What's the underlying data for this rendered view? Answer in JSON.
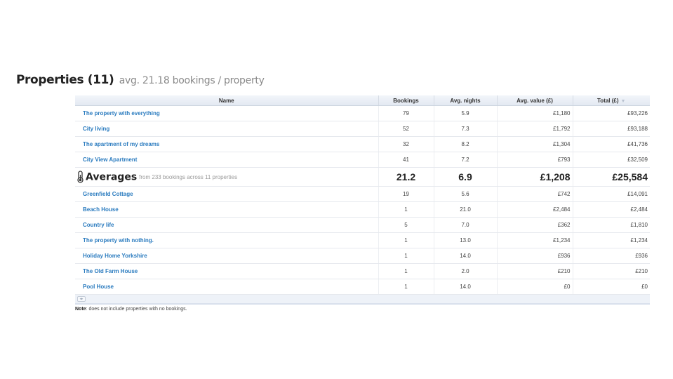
{
  "heading": {
    "title": "Properties (11)",
    "subtitle": "avg. 21.18 bookings / property"
  },
  "table": {
    "columns": {
      "name": "Name",
      "bookings": "Bookings",
      "nights": "Avg. nights",
      "value": "Avg. value (£)",
      "total": "Total (£)",
      "sort_icon": "sort-desc-icon"
    },
    "rows_top": [
      {
        "name": "The property with everything",
        "bookings": "79",
        "nights": "5.9",
        "value": "£1,180",
        "total": "£93,226"
      },
      {
        "name": "City living",
        "bookings": "52",
        "nights": "7.3",
        "value": "£1,792",
        "total": "£93,188"
      },
      {
        "name": "The apartment of my dreams",
        "bookings": "32",
        "nights": "8.2",
        "value": "£1,304",
        "total": "£41,736"
      },
      {
        "name": "City View Apartment",
        "bookings": "41",
        "nights": "7.2",
        "value": "£793",
        "total": "£32,509"
      }
    ],
    "averages": {
      "icon": "thermometer-icon",
      "label": "Averages",
      "note": "from 233 bookings across 11 properties",
      "bookings": "21.2",
      "nights": "6.9",
      "value": "£1,208",
      "total": "£25,584"
    },
    "rows_bottom": [
      {
        "name": "Greenfield Cottage",
        "bookings": "19",
        "nights": "5.6",
        "value": "£742",
        "total": "£14,091"
      },
      {
        "name": "Beach House",
        "bookings": "1",
        "nights": "21.0",
        "value": "£2,484",
        "total": "£2,484"
      },
      {
        "name": "Country life",
        "bookings": "5",
        "nights": "7.0",
        "value": "£362",
        "total": "£1,810"
      },
      {
        "name": "The property with nothing.",
        "bookings": "1",
        "nights": "13.0",
        "value": "£1,234",
        "total": "£1,234"
      },
      {
        "name": "Holiday Home Yorkshire",
        "bookings": "1",
        "nights": "14.0",
        "value": "£936",
        "total": "£936"
      },
      {
        "name": "The Old Farm House",
        "bookings": "1",
        "nights": "2.0",
        "value": "£210",
        "total": "£210"
      },
      {
        "name": "Pool House",
        "bookings": "1",
        "nights": "14.0",
        "value": "£0",
        "total": "£0"
      }
    ]
  },
  "note": {
    "label": "Note",
    "text": ": does not include properties with no bookings."
  },
  "colors": {
    "link": "#2a7bbf",
    "header_bg": "#e9eef5"
  }
}
